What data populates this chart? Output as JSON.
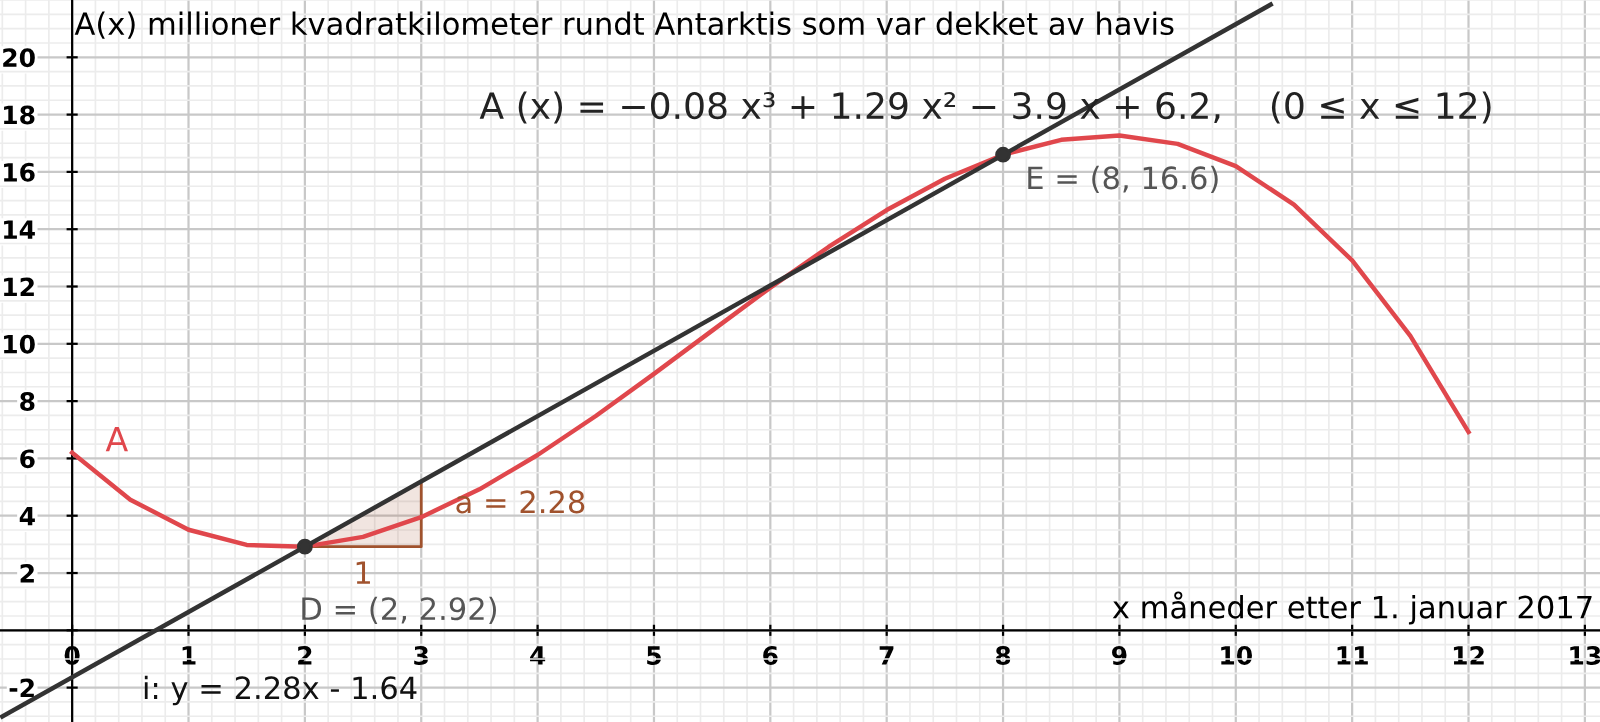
{
  "chart_data": {
    "type": "line",
    "title": "A(x) millioner kvadratkilometer rundt Antarktis som var dekket av havis",
    "xlabel": "x måneder etter 1. januar 2017",
    "xlim": [
      -0.62,
      13.13
    ],
    "ylim": [
      -3.2,
      22.0
    ],
    "xticks": [
      {
        "value": 0,
        "label": "0"
      },
      1,
      2,
      3,
      4,
      5,
      6,
      7,
      8,
      9,
      10,
      11,
      12,
      13
    ],
    "yticks": [
      -2,
      {
        "value": 0,
        "label": null
      },
      2,
      4,
      6,
      8,
      10,
      12,
      14,
      16,
      18,
      20
    ],
    "grid": true,
    "series": [
      {
        "name": "A",
        "color": "#e0474c",
        "x": [
          0,
          0.5,
          1,
          1.5,
          2,
          2.5,
          3,
          3.5,
          4,
          4.5,
          5,
          5.5,
          6,
          6.5,
          7,
          7.5,
          8,
          8.5,
          9,
          9.5,
          10,
          10.5,
          11,
          11.5,
          12
        ],
        "values": [
          6.2,
          4.56,
          3.51,
          2.98,
          2.92,
          3.26,
          3.95,
          4.92,
          6.12,
          7.48,
          8.95,
          10.46,
          11.96,
          13.38,
          14.67,
          15.76,
          16.6,
          17.12,
          17.27,
          16.98,
          16.2,
          14.86,
          12.91,
          10.28,
          6.92
        ]
      },
      {
        "type": "line",
        "color": "#333333",
        "x": [
          -0.6,
          10.3
        ],
        "values": [
          -3.01,
          21.84
        ]
      },
      {
        "type": "area",
        "color": "#a0522d",
        "x": [
          2,
          3
        ],
        "values": [
          2.92,
          5.2
        ]
      },
      {
        "type": "scatter",
        "color": "#333333",
        "marker": "circle",
        "x": [
          2,
          8
        ],
        "values": [
          2.92,
          16.6
        ]
      }
    ],
    "annotations": [
      "A (x) = −0.08 x³ + 1.29 x² − 3.9 x + 6.2,    (0 ≤ x ≤ 12)",
      {
        "text": "a = 2.28",
        "x": 3,
        "y": 4
      },
      {
        "text": "1",
        "x": 2.5,
        "y": 2.92
      },
      {
        "text": "D = (2, 2.92)",
        "x": 2,
        "y": 2.92
      },
      {
        "text": "E = (8, 16.6)",
        "x": 8,
        "y": 16.6
      },
      "i: y = 2.28x - 1.64"
    ]
  }
}
